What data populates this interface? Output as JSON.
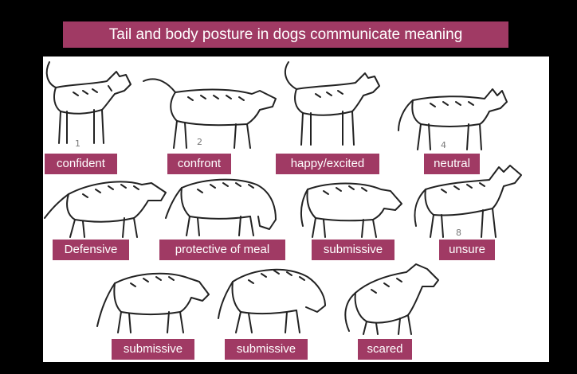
{
  "title": "Tail and body posture in dogs communicate meaning",
  "figure_numbers": {
    "n1": "1",
    "n2": "2",
    "n4": "4",
    "n8": "8"
  },
  "labels": {
    "confident": "confident",
    "confront": "confront",
    "happy": "happy/excited",
    "neutral": "neutral",
    "defensive": "Defensive",
    "protective": "protective of meal",
    "submissive1": "submissive",
    "unsure": "unsure",
    "submissive2": "submissive",
    "submissive3": "submissive",
    "scared": "scared"
  },
  "colors": {
    "label_bg": "#a03a64",
    "label_text": "#ffffff",
    "page_bg": "#000000",
    "panel_bg": "#ffffff"
  }
}
